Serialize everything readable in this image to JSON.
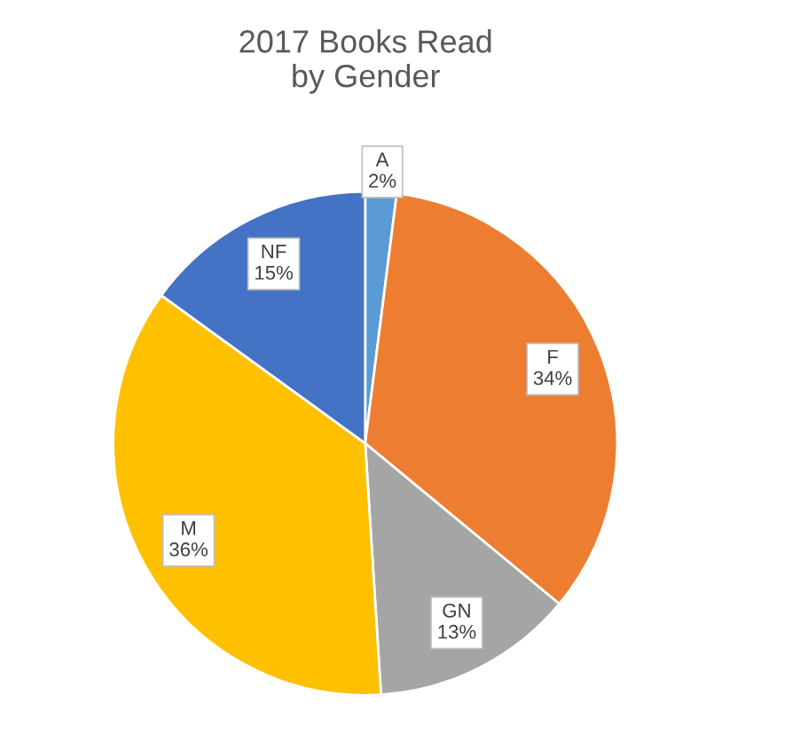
{
  "chart_data": {
    "type": "pie",
    "title": "2017 Books Read\nby Gender",
    "categories": [
      "A",
      "F",
      "GN",
      "M",
      "NF"
    ],
    "values": [
      2,
      34,
      13,
      36,
      15
    ],
    "value_labels": [
      "2%",
      "34%",
      "13%",
      "36%",
      "15%"
    ],
    "colors": [
      "#5b9bd5",
      "#ed7d31",
      "#a5a5a5",
      "#ffc000",
      "#4472c4"
    ]
  }
}
